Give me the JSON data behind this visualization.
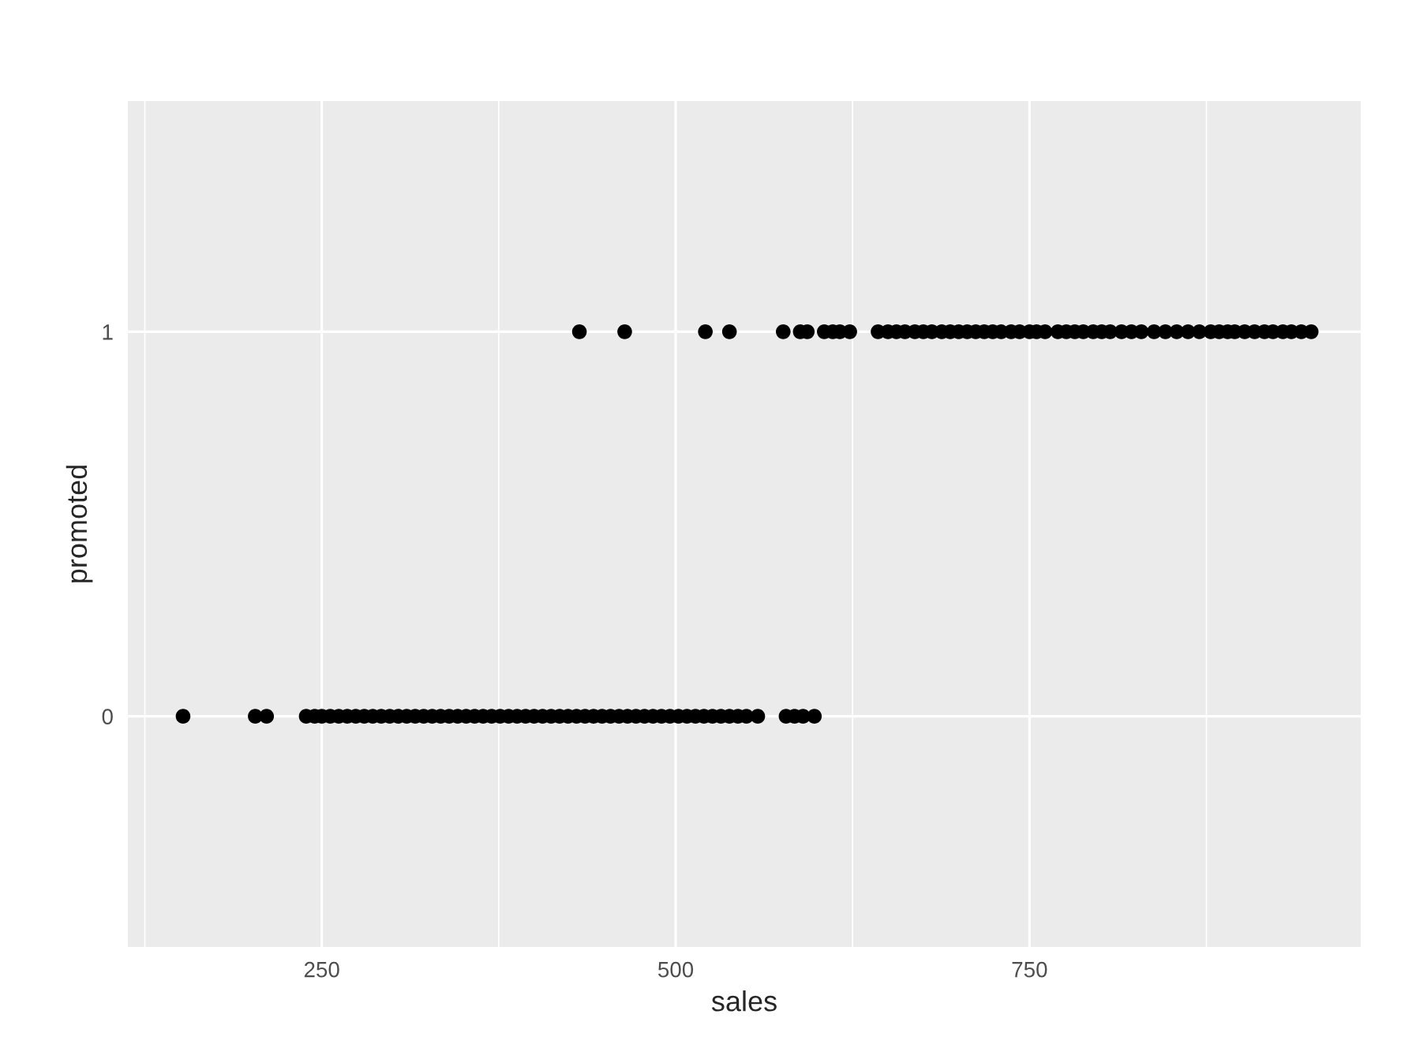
{
  "chart_data": {
    "type": "scatter",
    "xlabel": "sales",
    "ylabel": "promoted",
    "series": [
      {
        "color": "#000000",
        "x": [
          152,
          203,
          211,
          239,
          245,
          250,
          256,
          262,
          268,
          274,
          280,
          286,
          292,
          298,
          304,
          310,
          316,
          322,
          328,
          334,
          340,
          346,
          352,
          358,
          364,
          370,
          376,
          382,
          388,
          394,
          400,
          406,
          412,
          418,
          424,
          430,
          436,
          442,
          448,
          454,
          460,
          466,
          472,
          478,
          484,
          490,
          496,
          502,
          508,
          514,
          520,
          526,
          532,
          538,
          544,
          550,
          558,
          578,
          584,
          590,
          598
        ],
        "values": [
          0,
          0,
          0,
          0,
          0,
          0,
          0,
          0,
          0,
          0,
          0,
          0,
          0,
          0,
          0,
          0,
          0,
          0,
          0,
          0,
          0,
          0,
          0,
          0,
          0,
          0,
          0,
          0,
          0,
          0,
          0,
          0,
          0,
          0,
          0,
          0,
          0,
          0,
          0,
          0,
          0,
          0,
          0,
          0,
          0,
          0,
          0,
          0,
          0,
          0,
          0,
          0,
          0,
          0,
          0,
          0,
          0,
          0,
          0,
          0,
          0
        ]
      },
      {
        "color": "#000000",
        "x": [
          432,
          464,
          521,
          538,
          576,
          588,
          593,
          605,
          611,
          616,
          623,
          643,
          650,
          656,
          662,
          669,
          675,
          681,
          688,
          694,
          700,
          706,
          712,
          718,
          724,
          730,
          737,
          743,
          750,
          755,
          761,
          770,
          776,
          782,
          788,
          795,
          801,
          807,
          815,
          822,
          829,
          838,
          846,
          854,
          862,
          870,
          878,
          884,
          890,
          895,
          902,
          909,
          916,
          922,
          929,
          935,
          942,
          949
        ],
        "values": [
          1,
          1,
          1,
          1,
          1,
          1,
          1,
          1,
          1,
          1,
          1,
          1,
          1,
          1,
          1,
          1,
          1,
          1,
          1,
          1,
          1,
          1,
          1,
          1,
          1,
          1,
          1,
          1,
          1,
          1,
          1,
          1,
          1,
          1,
          1,
          1,
          1,
          1,
          1,
          1,
          1,
          1,
          1,
          1,
          1,
          1,
          1,
          1,
          1,
          1,
          1,
          1,
          1,
          1,
          1,
          1,
          1,
          1
        ]
      }
    ],
    "xlim": [
      113,
      984
    ],
    "xticks": [
      {
        "value": 125,
        "label": null
      },
      250,
      {
        "value": 375,
        "label": null
      },
      500,
      {
        "value": 625,
        "label": null
      },
      750,
      {
        "value": 875,
        "label": null
      }
    ],
    "ylim": [
      -0.6,
      1.6
    ],
    "yticks": [
      0,
      1
    ],
    "grid": true,
    "marker": "circle"
  }
}
